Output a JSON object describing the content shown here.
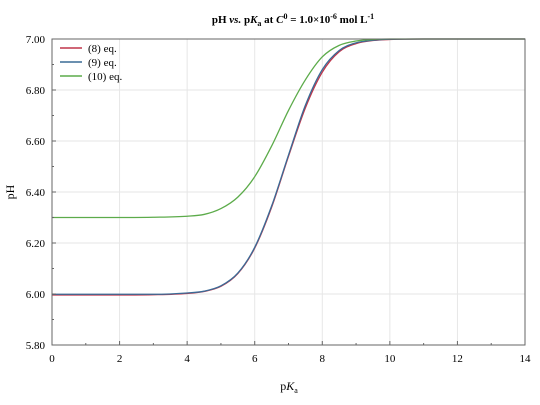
{
  "chart_data": {
    "type": "line",
    "title": "pH vs. pKa at C0 = 1.0×10-6 mol L-1",
    "xlabel": "pKa",
    "ylabel": "pH",
    "xlim": [
      0,
      14
    ],
    "ylim": [
      5.8,
      7.0
    ],
    "xticks": [
      0,
      2,
      4,
      6,
      8,
      10,
      12,
      14
    ],
    "xtick_labels": [
      "0",
      "2",
      "4",
      "6",
      "8",
      "10",
      "12",
      "14"
    ],
    "yticks": [
      5.8,
      6.0,
      6.2,
      6.4,
      6.6,
      6.8,
      7.0
    ],
    "ytick_labels": [
      "5.80",
      "6.00",
      "6.20",
      "6.40",
      "6.60",
      "6.80",
      "7.00"
    ],
    "grid": true,
    "legend_position": "top-left",
    "x": [
      0,
      1,
      2,
      3,
      4,
      4.5,
      5,
      5.5,
      6,
      6.5,
      7,
      7.5,
      8,
      8.5,
      9,
      9.5,
      10,
      11,
      12,
      13,
      14
    ],
    "series": [
      {
        "name": "(8) eq.",
        "color": "#c0354a",
        "values": [
          5.996,
          5.996,
          5.996,
          5.997,
          6.002,
          6.01,
          6.03,
          6.08,
          6.18,
          6.34,
          6.54,
          6.73,
          6.87,
          6.95,
          6.982,
          6.994,
          6.998,
          7.0,
          7.0,
          7.0,
          7.0
        ]
      },
      {
        "name": "(9) eq.",
        "color": "#3a6b96",
        "values": [
          5.999,
          5.999,
          5.999,
          5.999,
          6.004,
          6.011,
          6.032,
          6.082,
          6.183,
          6.345,
          6.545,
          6.74,
          6.88,
          6.955,
          6.985,
          6.995,
          6.999,
          7.0,
          7.0,
          7.0,
          7.0
        ]
      },
      {
        "name": "(10) eq.",
        "color": "#5cab4a",
        "values": [
          6.3,
          6.3,
          6.3,
          6.301,
          6.305,
          6.312,
          6.335,
          6.38,
          6.46,
          6.58,
          6.72,
          6.84,
          6.93,
          6.975,
          6.992,
          6.998,
          7.0,
          7.0,
          7.0,
          7.0,
          7.0
        ]
      }
    ]
  }
}
